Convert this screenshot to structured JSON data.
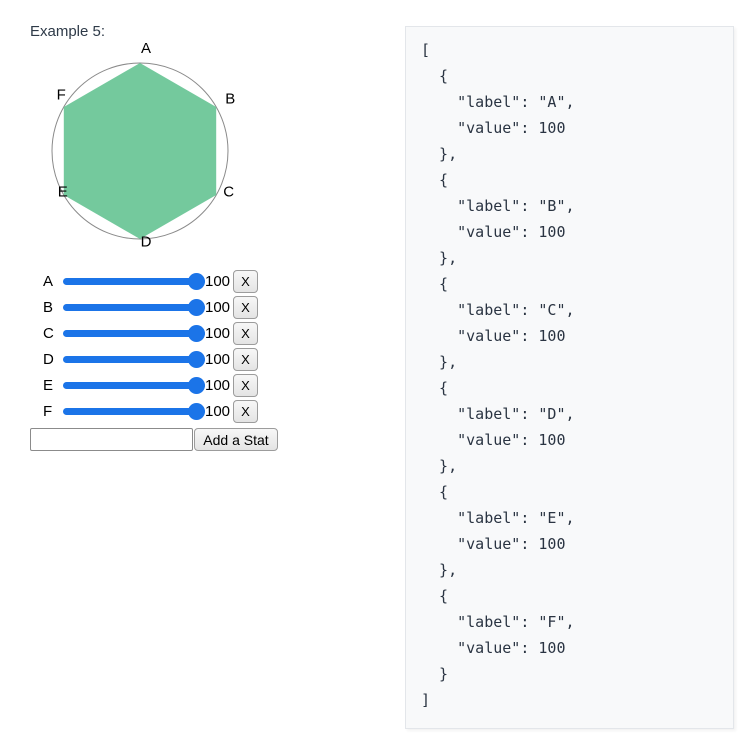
{
  "title": "Example 5:",
  "stats": [
    {
      "label": "A",
      "value": 100
    },
    {
      "label": "B",
      "value": 100
    },
    {
      "label": "C",
      "value": 100
    },
    {
      "label": "D",
      "value": 100
    },
    {
      "label": "E",
      "value": 100
    },
    {
      "label": "F",
      "value": 100
    }
  ],
  "controls": {
    "remove_button_label": "X",
    "add_input_value": "",
    "add_button_label": "Add a Stat",
    "slider_min": 0,
    "slider_max": 100
  },
  "chart_data": {
    "type": "radar",
    "categories": [
      "A",
      "B",
      "C",
      "D",
      "E",
      "F"
    ],
    "values": [
      100,
      100,
      100,
      100,
      100,
      100
    ],
    "max": 100,
    "fill_color": "#74c99d",
    "outline_circle_color": "#8a8a8a",
    "grid": "single outer circle",
    "legend": "none"
  },
  "code_panel": {
    "language": "json",
    "text": "[\n  {\n    \"label\": \"A\",\n    \"value\": 100\n  },\n  {\n    \"label\": \"B\",\n    \"value\": 100\n  },\n  {\n    \"label\": \"C\",\n    \"value\": 100\n  },\n  {\n    \"label\": \"D\",\n    \"value\": 100\n  },\n  {\n    \"label\": \"E\",\n    \"value\": 100\n  },\n  {\n    \"label\": \"F\",\n    \"value\": 100\n  }\n]"
  },
  "colors": {
    "slider_accent": "#1b74e8",
    "title_color": "#2e3a48",
    "chart_fill": "#74c99d",
    "code_bg": "#f8f9fa",
    "code_border": "#e3e6ea",
    "code_text": "#2a3442"
  }
}
